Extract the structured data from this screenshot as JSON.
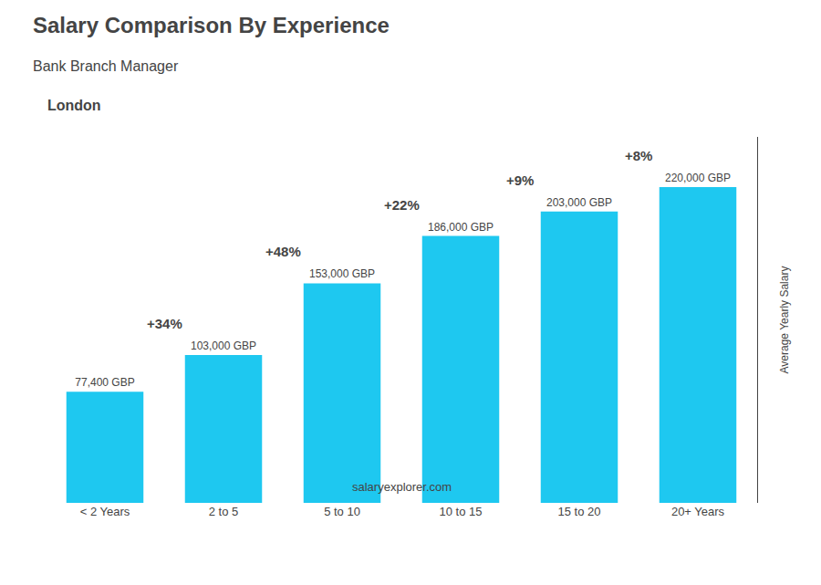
{
  "chart_data": {
    "type": "bar",
    "title": "Salary Comparison By Experience",
    "subtitle": "Bank Branch Manager",
    "city": "London",
    "footer": "salaryexplorer.com",
    "ylabel": "Average Yearly Salary",
    "categories": [
      "< 2 Years",
      "2 to 5",
      "5 to 10",
      "10 to 15",
      "15 to 20",
      "20+ Years"
    ],
    "values": [
      77400,
      103000,
      153000,
      186000,
      203000,
      220000
    ],
    "value_labels": [
      "77,400 GBP",
      "103,000 GBP",
      "153,000 GBP",
      "186,000 GBP",
      "203,000 GBP",
      "220,000 GBP"
    ],
    "data_labels": true,
    "annotations": [
      "+34%",
      "+48%",
      "+22%",
      "+9%",
      "+8%"
    ],
    "color": "#1ec8f0",
    "ylim": [
      0,
      255000
    ],
    "grid": false,
    "tick_labels": "x"
  }
}
